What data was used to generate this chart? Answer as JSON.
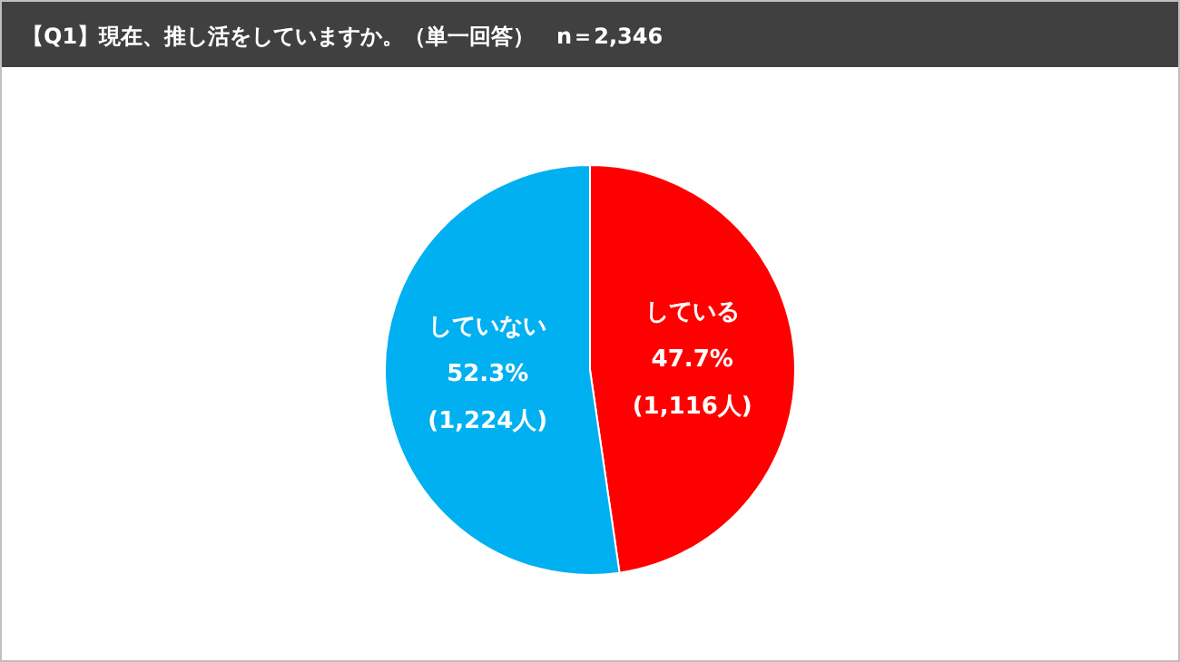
{
  "chart_data": {
    "type": "pie",
    "title": "【Q1】現在、推し活をしていますか。（単一回答）　n＝2,346",
    "categories": [
      "している",
      "していない"
    ],
    "values": [
      47.7,
      52.3
    ],
    "colors": [
      "#ff0000",
      "#00b0f0"
    ],
    "value_labels": [
      "47.7%",
      "52.3%"
    ],
    "annotations": [
      "(1,116人)",
      "(1,224人)"
    ]
  }
}
